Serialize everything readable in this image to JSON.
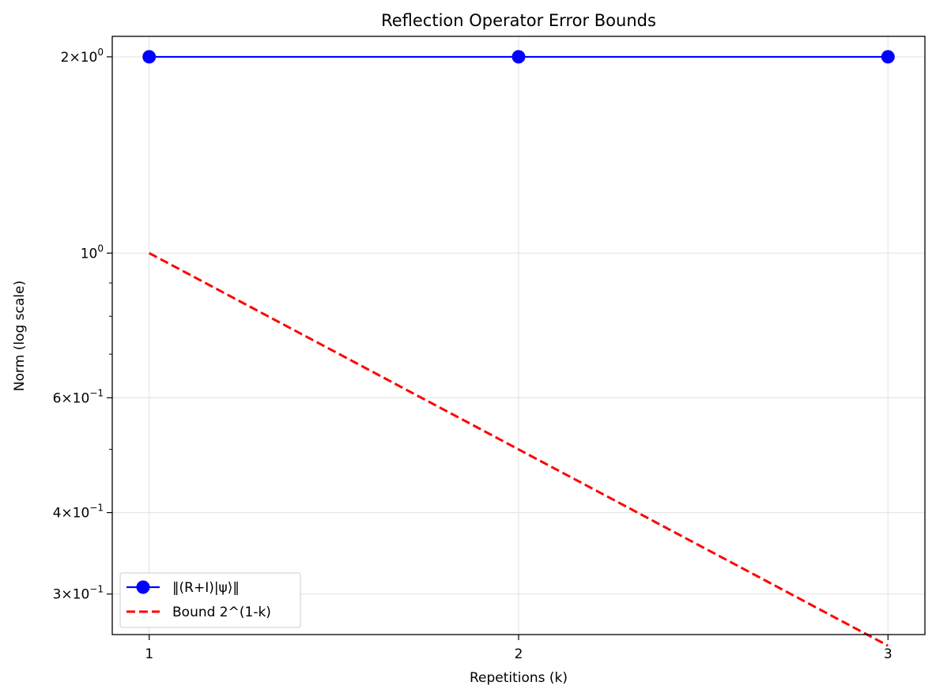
{
  "chart_data": {
    "type": "line",
    "title": "Reflection Operator Error Bounds",
    "xlabel": "Repetitions (k)",
    "ylabel": "Norm (log scale)",
    "x": [
      1,
      2,
      3
    ],
    "xticks": [
      {
        "value": 1,
        "label": "1"
      },
      {
        "value": 2,
        "label": "2"
      },
      {
        "value": 3,
        "label": "3"
      }
    ],
    "yscale": "log",
    "ylim": [
      0.26,
      2.15
    ],
    "xlim": [
      0.9,
      3.1
    ],
    "yticks_major": [
      {
        "value": 2,
        "label_base": "2×10",
        "label_exp": "0"
      },
      {
        "value": 1,
        "label_base": "10",
        "label_exp": "0"
      },
      {
        "value": 0.6,
        "label_base": "6×10",
        "label_exp": "−1"
      },
      {
        "value": 0.4,
        "label_base": "4×10",
        "label_exp": "−1"
      },
      {
        "value": 0.3,
        "label_base": "3×10",
        "label_exp": "−1"
      }
    ],
    "yticks_minor": [
      0.5,
      0.7,
      0.8,
      0.9
    ],
    "grid": true,
    "legend_position": "lower-left",
    "series": [
      {
        "name": "‖(R+I)|ψ⟩‖",
        "values": [
          2,
          2,
          2
        ],
        "color": "#0000ff",
        "linestyle": "solid",
        "marker": "circle"
      },
      {
        "name": "Bound 2^(1-k)",
        "values": [
          1,
          0.5,
          0.25
        ],
        "color": "#ff0000",
        "linestyle": "dashed",
        "marker": "none"
      }
    ]
  }
}
